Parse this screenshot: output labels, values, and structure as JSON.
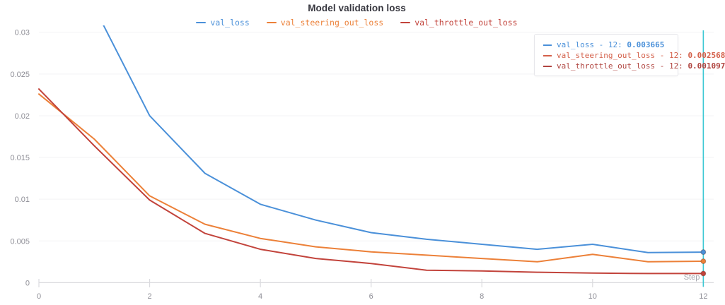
{
  "title": "Model validation loss",
  "axes": {
    "x": {
      "label": "Step",
      "ticks": [
        0,
        2,
        4,
        6,
        8,
        10,
        12
      ]
    },
    "y": {
      "ticks": [
        "0",
        "0.005",
        "0.01",
        "0.015",
        "0.02",
        "0.025",
        "0.03"
      ]
    }
  },
  "crosshair": {
    "step": 12,
    "color": "#3cc8d4"
  },
  "tooltip": {
    "rows": [
      {
        "label": "val_loss",
        "step": "12",
        "value": "0.003665",
        "color": "#4a90d9"
      },
      {
        "label": "val_steering_out_loss",
        "step": "12",
        "value": "0.002568",
        "color": "#d4604a"
      },
      {
        "label": "val_throttle_out_loss",
        "step": "12",
        "value": "0.001097",
        "color": "#b04540"
      }
    ]
  },
  "chart_data": {
    "type": "line",
    "title": "Model validation loss",
    "xlabel": "Step",
    "ylabel": "",
    "x": [
      0,
      1,
      2,
      3,
      4,
      5,
      6,
      7,
      8,
      9,
      10,
      11,
      12
    ],
    "xlim": [
      0,
      12.2
    ],
    "ylim": [
      0,
      0.0308
    ],
    "grid": true,
    "legend_position": "top-center",
    "series": [
      {
        "name": "val_loss",
        "color": "#4a90d9",
        "values": [
          null,
          0.033,
          0.02,
          0.0131,
          0.0094,
          0.0075,
          0.006,
          0.0052,
          0.0046,
          0.004,
          0.0046,
          0.0036,
          0.003665
        ]
      },
      {
        "name": "val_steering_out_loss",
        "color": "#ec8038",
        "values": [
          0.0226,
          0.0172,
          0.0104,
          0.007,
          0.0053,
          0.0043,
          0.0037,
          0.0033,
          0.0029,
          0.0025,
          0.0034,
          0.0025,
          0.002568
        ]
      },
      {
        "name": "val_throttle_out_loss",
        "color": "#c2433b",
        "values": [
          0.0232,
          0.0164,
          0.0099,
          0.0059,
          0.004,
          0.0029,
          0.0023,
          0.0015,
          0.0014,
          0.00125,
          0.00115,
          0.0011,
          0.001097
        ]
      }
    ],
    "final_step_values": {
      "val_loss": 0.003665,
      "val_steering_out_loss": 0.002568,
      "val_throttle_out_loss": 0.001097
    }
  },
  "style": {
    "grid_color": "#f3f3f5",
    "axis_color": "#dadade",
    "tick_label_color": "#8e8e96",
    "step_label_color": "#a4a4ac"
  }
}
